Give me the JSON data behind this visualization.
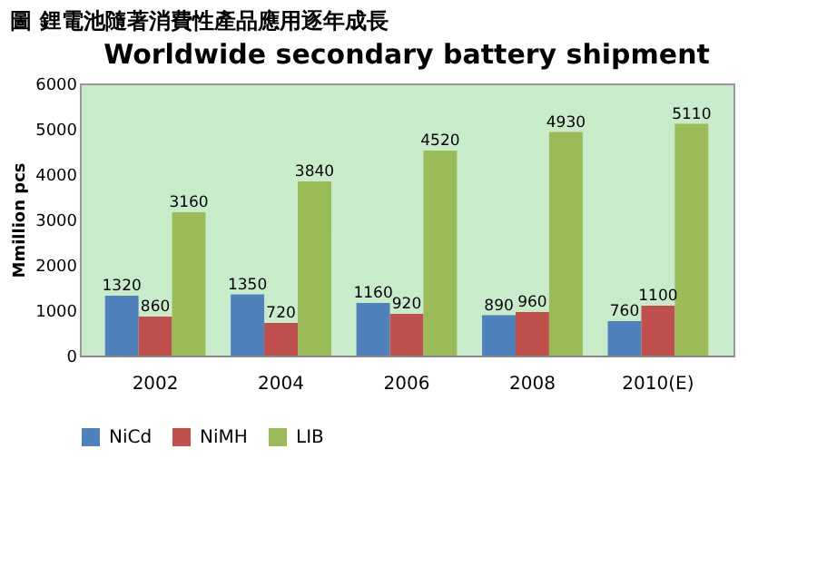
{
  "chart_data": {
    "type": "bar",
    "title": "圖  鋰電池隨著消費性產品應用逐年成長",
    "subtitle": "Worldwide secondary battery shipment",
    "ylabel": "Mmillion pcs",
    "categories": [
      "2002",
      "2004",
      "2006",
      "2008",
      "2010(E)"
    ],
    "series": [
      {
        "name": "NiCd",
        "color": "#4f81bd",
        "values": [
          1320,
          1350,
          1160,
          890,
          760
        ]
      },
      {
        "name": "NiMH",
        "color": "#c0504d",
        "values": [
          860,
          720,
          920,
          960,
          1100
        ]
      },
      {
        "name": "LIB",
        "color": "#9bbb59",
        "values": [
          3160,
          3840,
          4520,
          4930,
          5110
        ]
      }
    ],
    "ylim": [
      0,
      6000
    ],
    "yticks": [
      0,
      1000,
      2000,
      3000,
      4000,
      5000,
      6000
    ],
    "grid": false,
    "legend": "bottom",
    "data_labels": true
  }
}
